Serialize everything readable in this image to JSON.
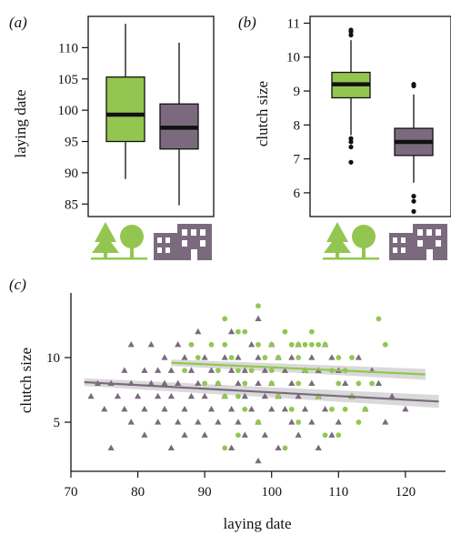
{
  "colors": {
    "rural": "#93c650",
    "urban": "#7b6a7e",
    "axis": "#111111",
    "fit_band": "#cfcfcf"
  },
  "chart_data": [
    {
      "panel": "(a)",
      "type": "box",
      "ylabel": "laying date",
      "ylim": [
        83,
        115
      ],
      "yticks": [
        "85",
        "90",
        "95",
        "100",
        "105",
        "110"
      ],
      "categories": [
        "rural (tree icons)",
        "urban (building icons)"
      ],
      "boxes": [
        {
          "whisker_low": 89,
          "q1": 95,
          "median": 99.3,
          "q3": 105.3,
          "whisker_high": 113.8,
          "color": "#93c650"
        },
        {
          "whisker_low": 84.8,
          "q1": 93.8,
          "median": 97.2,
          "q3": 101,
          "whisker_high": 110.8,
          "color": "#7b6a7e"
        }
      ]
    },
    {
      "panel": "(b)",
      "type": "box",
      "ylabel": "clutch size",
      "ylim": [
        5.3,
        11.2
      ],
      "yticks": [
        "6",
        "7",
        "8",
        "9",
        "10",
        "11"
      ],
      "categories": [
        "rural (tree icons)",
        "urban (building icons)"
      ],
      "boxes": [
        {
          "whisker_low": 7.7,
          "q1": 8.8,
          "median": 9.2,
          "q3": 9.55,
          "whisker_high": 10.5,
          "outliers": [
            10.65,
            10.75,
            10.8,
            7.6,
            7.5,
            7.35,
            6.9
          ],
          "color": "#93c650"
        },
        {
          "whisker_low": 6.3,
          "q1": 7.1,
          "median": 7.5,
          "q3": 7.9,
          "whisker_high": 8.9,
          "outliers": [
            9.15,
            9.2,
            5.9,
            5.75,
            5.45
          ],
          "color": "#7b6a7e"
        }
      ]
    },
    {
      "panel": "(c)",
      "type": "scatter",
      "xlabel": "laying date",
      "ylabel": "clutch size",
      "xlim": [
        70,
        126
      ],
      "ylim": [
        1.2,
        15
      ],
      "xticks": [
        "70",
        "80",
        "90",
        "100",
        "110",
        "120"
      ],
      "yticks": [
        "5",
        "10"
      ],
      "series": [
        {
          "group": "rural",
          "marker": "circle",
          "color": "#93c650",
          "fit": {
            "x": [
              85,
              123
            ],
            "y": [
              9.6,
              8.7
            ]
          },
          "points": [
            [
              98,
              14
            ],
            [
              93,
              13
            ],
            [
              116,
              13
            ],
            [
              95,
              12
            ],
            [
              96,
              12
            ],
            [
              102,
              12
            ],
            [
              106,
              12
            ],
            [
              88,
              11
            ],
            [
              91,
              11
            ],
            [
              93,
              11
            ],
            [
              98,
              11
            ],
            [
              100,
              11
            ],
            [
              103,
              11
            ],
            [
              104,
              11
            ],
            [
              105,
              11
            ],
            [
              106,
              11
            ],
            [
              107,
              11
            ],
            [
              108,
              11
            ],
            [
              117,
              11
            ],
            [
              89,
              10
            ],
            [
              94,
              10
            ],
            [
              99,
              10
            ],
            [
              101,
              10
            ],
            [
              104,
              10
            ],
            [
              110,
              10
            ],
            [
              112,
              10
            ],
            [
              87,
              9
            ],
            [
              92,
              9
            ],
            [
              95,
              9
            ],
            [
              97,
              9
            ],
            [
              100,
              9
            ],
            [
              105,
              9
            ],
            [
              109,
              9
            ],
            [
              111,
              9
            ],
            [
              90,
              8
            ],
            [
              92,
              8
            ],
            [
              96,
              8
            ],
            [
              100,
              8
            ],
            [
              104,
              8
            ],
            [
              110,
              8
            ],
            [
              113,
              8
            ],
            [
              115,
              8
            ],
            [
              93,
              7
            ],
            [
              95,
              7
            ],
            [
              101,
              7
            ],
            [
              107,
              7
            ],
            [
              112,
              7
            ],
            [
              96,
              6
            ],
            [
              103,
              6
            ],
            [
              109,
              6
            ],
            [
              111,
              6
            ],
            [
              114,
              6
            ],
            [
              98,
              5
            ],
            [
              104,
              5
            ],
            [
              113,
              5
            ],
            [
              95,
              4
            ],
            [
              108,
              4
            ],
            [
              110,
              4
            ],
            [
              93,
              3
            ],
            [
              102,
              3
            ]
          ]
        },
        {
          "group": "urban",
          "marker": "triangle",
          "color": "#7b6a7e",
          "fit": {
            "x": [
              72,
              125
            ],
            "y": [
              8.1,
              6.6
            ]
          },
          "points": [
            [
              98,
              13
            ],
            [
              89,
              12
            ],
            [
              94,
              12
            ],
            [
              79,
              11
            ],
            [
              82,
              11
            ],
            [
              86,
              11
            ],
            [
              97,
              11
            ],
            [
              100,
              11
            ],
            [
              104,
              11
            ],
            [
              108,
              11
            ],
            [
              84,
              10
            ],
            [
              87,
              10
            ],
            [
              90,
              10
            ],
            [
              93,
              10
            ],
            [
              95,
              10
            ],
            [
              98,
              10
            ],
            [
              101,
              10
            ],
            [
              103,
              10
            ],
            [
              106,
              10
            ],
            [
              109,
              10
            ],
            [
              113,
              10
            ],
            [
              78,
              9
            ],
            [
              81,
              9
            ],
            [
              83,
              9
            ],
            [
              85,
              9
            ],
            [
              88,
              9
            ],
            [
              91,
              9
            ],
            [
              94,
              9
            ],
            [
              96,
              9
            ],
            [
              99,
              9
            ],
            [
              102,
              9
            ],
            [
              105,
              9
            ],
            [
              107,
              9
            ],
            [
              110,
              9
            ],
            [
              115,
              9
            ],
            [
              74,
              8
            ],
            [
              76,
              8
            ],
            [
              79,
              8
            ],
            [
              82,
              8
            ],
            [
              84,
              8
            ],
            [
              86,
              8
            ],
            [
              89,
              8
            ],
            [
              92,
              8
            ],
            [
              95,
              8
            ],
            [
              98,
              8
            ],
            [
              100,
              8
            ],
            [
              103,
              8
            ],
            [
              106,
              8
            ],
            [
              111,
              8
            ],
            [
              116,
              8
            ],
            [
              73,
              7
            ],
            [
              77,
              7
            ],
            [
              80,
              7
            ],
            [
              83,
              7
            ],
            [
              85,
              7
            ],
            [
              88,
              7
            ],
            [
              90,
              7
            ],
            [
              93,
              7
            ],
            [
              96,
              7
            ],
            [
              99,
              7
            ],
            [
              101,
              7
            ],
            [
              104,
              7
            ],
            [
              107,
              7
            ],
            [
              112,
              7
            ],
            [
              118,
              7
            ],
            [
              75,
              6
            ],
            [
              78,
              6
            ],
            [
              81,
              6
            ],
            [
              84,
              6
            ],
            [
              87,
              6
            ],
            [
              91,
              6
            ],
            [
              94,
              6
            ],
            [
              97,
              6
            ],
            [
              100,
              6
            ],
            [
              102,
              6
            ],
            [
              105,
              6
            ],
            [
              108,
              6
            ],
            [
              114,
              6
            ],
            [
              120,
              6
            ],
            [
              79,
              5
            ],
            [
              83,
              5
            ],
            [
              86,
              5
            ],
            [
              89,
              5
            ],
            [
              92,
              5
            ],
            [
              95,
              5
            ],
            [
              98,
              5
            ],
            [
              103,
              5
            ],
            [
              106,
              5
            ],
            [
              110,
              5
            ],
            [
              117,
              5
            ],
            [
              81,
              4
            ],
            [
              87,
              4
            ],
            [
              90,
              4
            ],
            [
              96,
              4
            ],
            [
              99,
              4
            ],
            [
              104,
              4
            ],
            [
              109,
              4
            ],
            [
              76,
              3
            ],
            [
              85,
              3
            ],
            [
              94,
              3
            ],
            [
              101,
              3
            ],
            [
              107,
              3
            ],
            [
              98,
              2
            ]
          ]
        }
      ]
    }
  ]
}
